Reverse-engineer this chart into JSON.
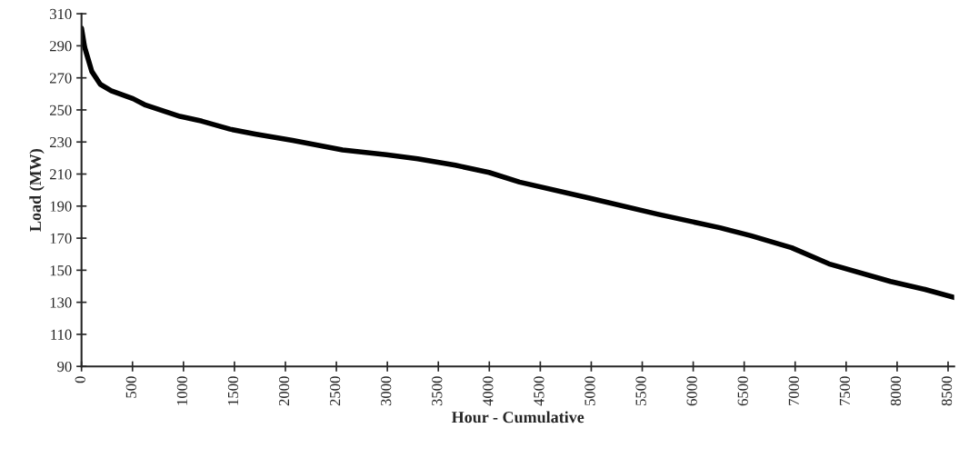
{
  "chart_data": {
    "type": "line",
    "xlabel": "Hour - Cumulative",
    "ylabel": "Load (MW)",
    "x": [
      0,
      31,
      101,
      184,
      291,
      506,
      629,
      966,
      1181,
      1457,
      1702,
      2071,
      2316,
      2561,
      2991,
      3298,
      3666,
      3997,
      4297,
      4982,
      5649,
      6263,
      6566,
      6966,
      7331,
      7936,
      8274,
      8560
    ],
    "series": [
      {
        "color": "#000000",
        "values": [
          301,
          289,
          274,
          266,
          262,
          257,
          253,
          246,
          243,
          238,
          235,
          231,
          228,
          225,
          222,
          219.5,
          215.5,
          211,
          205,
          195,
          185,
          176.5,
          171.5,
          164,
          154,
          143,
          138,
          133
        ]
      }
    ],
    "xlim": [
      0,
      8560
    ],
    "xticks": [
      0,
      500,
      1000,
      1500,
      2000,
      2500,
      3000,
      3500,
      4000,
      4500,
      5000,
      5500,
      6000,
      6500,
      7000,
      7500,
      8000,
      8500
    ],
    "ylim": [
      90,
      310
    ],
    "yticks": [
      90,
      110,
      130,
      150,
      170,
      190,
      210,
      230,
      250,
      270,
      290,
      310
    ],
    "grid": false,
    "legend": false,
    "marker": "none",
    "line_style": "solid"
  }
}
